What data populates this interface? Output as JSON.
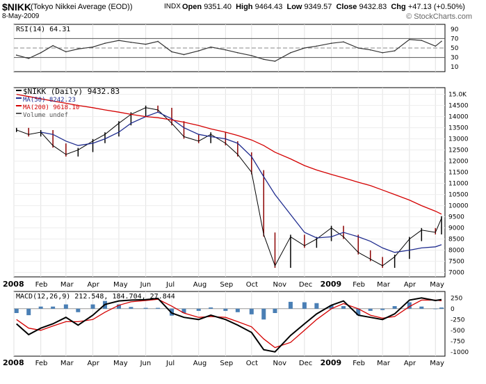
{
  "header": {
    "symbol": "$NIKK",
    "description": "(Tokyo Nikkei Average (EOD))",
    "exchange": "INDX",
    "date": "8-May-2009",
    "open_label": "Open",
    "open": "9351.40",
    "high_label": "High",
    "high": "9464.43",
    "low_label": "Low",
    "low": "9349.57",
    "close_label": "Close",
    "close": "9432.83",
    "chg_label": "Chg",
    "chg": "+47.13 (+0.50%)",
    "logo": "© StockCharts.com"
  },
  "colors": {
    "price": "#000000",
    "ma50": "#1f2c8f",
    "ma200": "#d40000",
    "rsi": "#333333",
    "hist": "#4a7fb5",
    "signal": "#d40000",
    "down_bar": "#8b0000"
  },
  "chart_data": [
    {
      "type": "line",
      "panel": "rsi",
      "legend": "RSI(14) 64.31",
      "ylim": [
        0,
        100
      ],
      "yticks": [
        10,
        30,
        50,
        70,
        90
      ],
      "reference_lines": [
        30,
        50,
        70
      ],
      "x": [
        "2008-01-04",
        "2008-01-18",
        "2008-02-01",
        "2008-02-15",
        "2008-03-01",
        "2008-03-15",
        "2008-04-01",
        "2008-04-15",
        "2008-05-01",
        "2008-05-15",
        "2008-06-01",
        "2008-06-15",
        "2008-07-01",
        "2008-07-15",
        "2008-08-01",
        "2008-08-15",
        "2008-09-01",
        "2008-09-15",
        "2008-10-01",
        "2008-10-15",
        "2008-10-28",
        "2008-11-15",
        "2008-12-01",
        "2008-12-15",
        "2009-01-01",
        "2009-01-15",
        "2009-02-01",
        "2009-02-15",
        "2009-03-01",
        "2009-03-15",
        "2009-04-01",
        "2009-04-15",
        "2009-05-01",
        "2009-05-08"
      ],
      "values": [
        35,
        28,
        40,
        55,
        42,
        48,
        52,
        60,
        66,
        62,
        58,
        64,
        42,
        36,
        44,
        52,
        46,
        40,
        34,
        26,
        22,
        40,
        50,
        54,
        60,
        63,
        50,
        46,
        40,
        44,
        68,
        66,
        54,
        64.31
      ]
    },
    {
      "type": "line",
      "panel": "price",
      "legend": [
        "$NIKK (Daily) 9432.83",
        "MA(50) 8242.23",
        "MA(200) 9618.10",
        "Volume undef"
      ],
      "ylim": [
        6800,
        15300
      ],
      "yticks": [
        "15.0K",
        "14500",
        "14000",
        "13500",
        "13000",
        "12500",
        "12000",
        "11500",
        "11000",
        "10500",
        "10000",
        "9500",
        "9000",
        "8500",
        "8000",
        "7500",
        "7000"
      ],
      "x": [
        "2008-01-04",
        "2008-01-18",
        "2008-02-01",
        "2008-02-15",
        "2008-03-01",
        "2008-03-15",
        "2008-04-01",
        "2008-04-15",
        "2008-05-01",
        "2008-05-15",
        "2008-06-01",
        "2008-06-15",
        "2008-07-01",
        "2008-07-15",
        "2008-08-01",
        "2008-08-15",
        "2008-09-01",
        "2008-09-15",
        "2008-10-01",
        "2008-10-15",
        "2008-10-28",
        "2008-11-15",
        "2008-12-01",
        "2008-12-15",
        "2009-01-01",
        "2009-01-15",
        "2009-02-01",
        "2009-02-15",
        "2009-03-01",
        "2009-03-15",
        "2009-04-01",
        "2009-04-15",
        "2009-05-01",
        "2009-05-08"
      ],
      "series": [
        {
          "name": "$NIKK (Daily)",
          "values": [
            13400,
            13200,
            13300,
            12700,
            12300,
            12500,
            12900,
            13200,
            13700,
            14100,
            14400,
            14300,
            13700,
            13100,
            12900,
            13200,
            12800,
            12300,
            11500,
            8700,
            7300,
            8600,
            8200,
            8500,
            9000,
            8600,
            7900,
            7600,
            7300,
            7700,
            8500,
            8900,
            8800,
            9432.83
          ]
        },
        {
          "name": "MA(50)",
          "values": [
            null,
            null,
            13300,
            13200,
            12900,
            12700,
            12800,
            13000,
            13300,
            13700,
            14000,
            14200,
            13900,
            13500,
            13200,
            13100,
            13000,
            12800,
            12200,
            11300,
            10500,
            9600,
            8800,
            8550,
            8600,
            8800,
            8600,
            8400,
            8100,
            7900,
            8000,
            8100,
            8150,
            8242.23
          ]
        },
        {
          "name": "MA(200)",
          "values": [
            15000,
            14900,
            14800,
            14700,
            14600,
            14500,
            14400,
            14300,
            14200,
            14100,
            14000,
            13950,
            13850,
            13750,
            13600,
            13450,
            13300,
            13150,
            12950,
            12700,
            12400,
            12100,
            11800,
            11600,
            11400,
            11250,
            11050,
            10900,
            10700,
            10500,
            10250,
            10000,
            9750,
            9618.1
          ]
        }
      ]
    },
    {
      "type": "line",
      "panel": "macd",
      "legend": "MACD(12,26,9) 212.548, 184.704, 27.844",
      "ylim": [
        -1100,
        400
      ],
      "yticks": [
        250,
        0,
        -250,
        -500,
        -750,
        -1000
      ],
      "x": [
        "2008-01-04",
        "2008-01-18",
        "2008-02-01",
        "2008-02-15",
        "2008-03-01",
        "2008-03-15",
        "2008-04-01",
        "2008-04-15",
        "2008-05-01",
        "2008-05-15",
        "2008-06-01",
        "2008-06-15",
        "2008-07-01",
        "2008-07-15",
        "2008-08-01",
        "2008-08-15",
        "2008-09-01",
        "2008-09-15",
        "2008-10-01",
        "2008-10-15",
        "2008-10-28",
        "2008-11-15",
        "2008-12-01",
        "2008-12-15",
        "2009-01-01",
        "2009-01-15",
        "2009-02-01",
        "2009-02-15",
        "2009-03-01",
        "2009-03-15",
        "2009-04-01",
        "2009-04-15",
        "2009-05-01",
        "2009-05-08"
      ],
      "series": [
        {
          "name": "MACD",
          "values": [
            -350,
            -600,
            -450,
            -350,
            -200,
            -380,
            -150,
            100,
            180,
            200,
            210,
            240,
            -100,
            -200,
            -250,
            -150,
            -250,
            -380,
            -550,
            -950,
            -1000,
            -620,
            -350,
            -120,
            80,
            180,
            -150,
            -200,
            -250,
            -120,
            200,
            250,
            190,
            212.548
          ]
        },
        {
          "name": "Signal",
          "values": [
            -250,
            -450,
            -500,
            -400,
            -300,
            -300,
            -250,
            -80,
            80,
            160,
            190,
            220,
            60,
            -100,
            -200,
            -180,
            -200,
            -300,
            -420,
            -700,
            -900,
            -780,
            -500,
            -250,
            0,
            120,
            0,
            -150,
            -220,
            -180,
            50,
            200,
            200,
            184.704
          ]
        },
        {
          "name": "Histogram",
          "values": [
            -100,
            -150,
            50,
            50,
            100,
            -80,
            100,
            180,
            100,
            40,
            20,
            20,
            -160,
            -100,
            -50,
            30,
            -50,
            -80,
            -130,
            -250,
            -100,
            160,
            150,
            130,
            80,
            60,
            -150,
            -50,
            -30,
            60,
            150,
            50,
            -10,
            27.844
          ]
        }
      ]
    }
  ],
  "axis": {
    "x_labels": [
      "2008",
      "Feb",
      "Mar",
      "Apr",
      "May",
      "Jun",
      "Jul",
      "Aug",
      "Sep",
      "Oct",
      "Nov",
      "Dec",
      "2009",
      "Feb",
      "Mar",
      "Apr",
      "May"
    ],
    "x_label_dates": [
      "2008-01-01",
      "2008-02-01",
      "2008-03-01",
      "2008-04-01",
      "2008-05-01",
      "2008-06-01",
      "2008-07-01",
      "2008-08-01",
      "2008-09-01",
      "2008-10-01",
      "2008-11-01",
      "2008-12-01",
      "2009-01-01",
      "2009-02-01",
      "2009-03-01",
      "2009-04-01",
      "2009-05-01"
    ],
    "x_start": "2008-01-01",
    "x_end": "2009-05-12"
  }
}
